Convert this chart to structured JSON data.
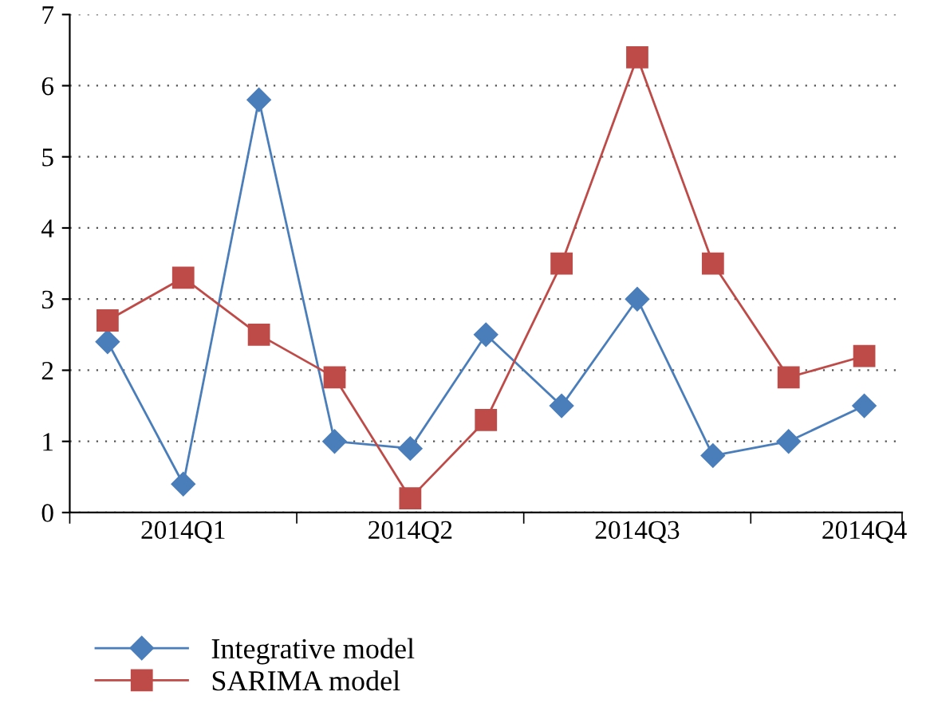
{
  "chart_data": {
    "type": "line",
    "categories": [
      null,
      "2014Q1",
      null,
      null,
      "2014Q2",
      null,
      null,
      "2014Q3",
      null,
      null,
      "2014Q4"
    ],
    "series": [
      {
        "name": "Integrative model",
        "color": "#4a7ebb",
        "marker": "diamond",
        "values": [
          2.4,
          0.4,
          5.8,
          1.0,
          0.9,
          2.5,
          1.5,
          3.0,
          0.8,
          1.0,
          1.5
        ]
      },
      {
        "name": "SARIMA model",
        "color": "#be4b48",
        "marker": "square",
        "values": [
          2.7,
          3.3,
          2.5,
          1.9,
          0.2,
          1.3,
          3.5,
          6.4,
          3.5,
          1.9,
          2.2
        ]
      }
    ],
    "ylim": [
      0,
      7
    ],
    "yticks": [
      0,
      1,
      2,
      3,
      4,
      5,
      6,
      7
    ],
    "grid": "y",
    "legend": "bottom",
    "line_style": "solid"
  }
}
